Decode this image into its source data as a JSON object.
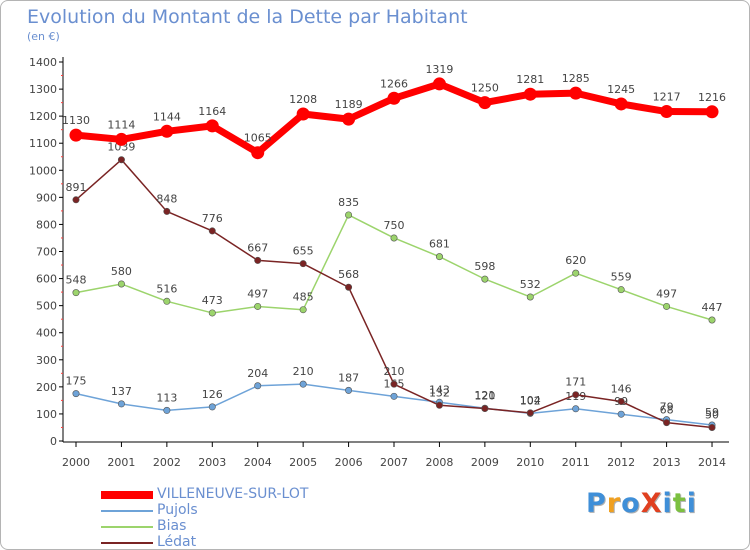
{
  "title": "Evolution du Montant de la Dette par Habitant",
  "subtitle": "(en €)",
  "logo": {
    "text": "ProXiti",
    "letters": [
      {
        "ch": "P",
        "color": "#3f8fd8"
      },
      {
        "ch": "r",
        "color": "#f0a020"
      },
      {
        "ch": "o",
        "color": "#3f8fd8"
      },
      {
        "ch": "X",
        "color": "#e04020"
      },
      {
        "ch": "i",
        "color": "#3f8fd8"
      },
      {
        "ch": "t",
        "color": "#7cc040"
      },
      {
        "ch": "i",
        "color": "#3f8fd8"
      }
    ]
  },
  "chart_data": {
    "type": "line",
    "title": "Evolution du Montant de la Dette par Habitant",
    "ylabel": "(en €)",
    "xlabel": "",
    "x": [
      2000,
      2001,
      2002,
      2003,
      2004,
      2005,
      2006,
      2007,
      2008,
      2009,
      2010,
      2011,
      2012,
      2013,
      2014
    ],
    "ylim": [
      0,
      1400
    ],
    "yticks": [
      0,
      100,
      200,
      300,
      400,
      500,
      600,
      700,
      800,
      900,
      1000,
      1100,
      1200,
      1300,
      1400
    ],
    "grid": false,
    "legend_position": "bottom-left",
    "series": [
      {
        "name": "VILLENEUVE-SUR-LOT",
        "color": "#ff0000",
        "width": 7,
        "values": [
          1130,
          1114,
          1144,
          1164,
          1065,
          1208,
          1189,
          1266,
          1319,
          1250,
          1281,
          1285,
          1245,
          1217,
          1216
        ]
      },
      {
        "name": "Pujols",
        "color": "#6ea3d8",
        "width": 1.5,
        "values": [
          175,
          137,
          113,
          126,
          204,
          210,
          187,
          165,
          143,
          121,
          102,
          119,
          99,
          79,
          59
        ]
      },
      {
        "name": "Bias",
        "color": "#9cd46c",
        "width": 1.5,
        "values": [
          548,
          580,
          516,
          473,
          497,
          485,
          835,
          750,
          681,
          598,
          532,
          620,
          559,
          497,
          447
        ]
      },
      {
        "name": "Lédat",
        "color": "#7a2424",
        "width": 1.5,
        "values": [
          891,
          1039,
          848,
          776,
          667,
          655,
          568,
          210,
          132,
          120,
          104,
          171,
          146,
          68,
          50
        ]
      }
    ]
  }
}
